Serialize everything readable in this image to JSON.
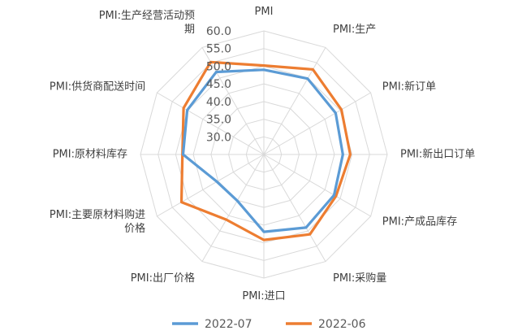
{
  "chart_data": {
    "type": "radar",
    "title": "",
    "axes": [
      [
        "PMI"
      ],
      [
        "PMI:生产"
      ],
      [
        "PMI:新订单"
      ],
      [
        "PMI:新出口订单"
      ],
      [
        "PMI:产成品库存"
      ],
      [
        "PMI:采购量"
      ],
      [
        "PMI:进口"
      ],
      [
        "PMI:出厂价格"
      ],
      [
        "PMI:主要原材料购进",
        "价格"
      ],
      [
        "PMI:原材料库存"
      ],
      [
        "PMI:供货商配送时间"
      ],
      [
        "PMI:生产经营活动预",
        "期"
      ]
    ],
    "rlim": [
      25,
      60
    ],
    "ticks": [
      30.0,
      35.0,
      40.0,
      45.0,
      50.0,
      55.0,
      60.0
    ],
    "tick_labels": [
      "30.0",
      "35.0",
      "40.0",
      "45.0",
      "50.0",
      "55.0",
      "60.0"
    ],
    "series": [
      {
        "name": "2022-07",
        "color": "#5b9bd5",
        "values": [
          49.0,
          49.8,
          48.5,
          47.4,
          48.0,
          48.9,
          46.9,
          40.1,
          40.4,
          47.9,
          50.1,
          52.0
        ]
      },
      {
        "name": "2022-06",
        "color": "#ed7d31",
        "values": [
          50.2,
          52.8,
          50.4,
          49.5,
          48.6,
          51.1,
          49.2,
          46.3,
          52.0,
          48.1,
          51.3,
          55.2
        ]
      }
    ],
    "legend": [
      "2022-07",
      "2022-06"
    ],
    "legend_position": "bottom"
  }
}
